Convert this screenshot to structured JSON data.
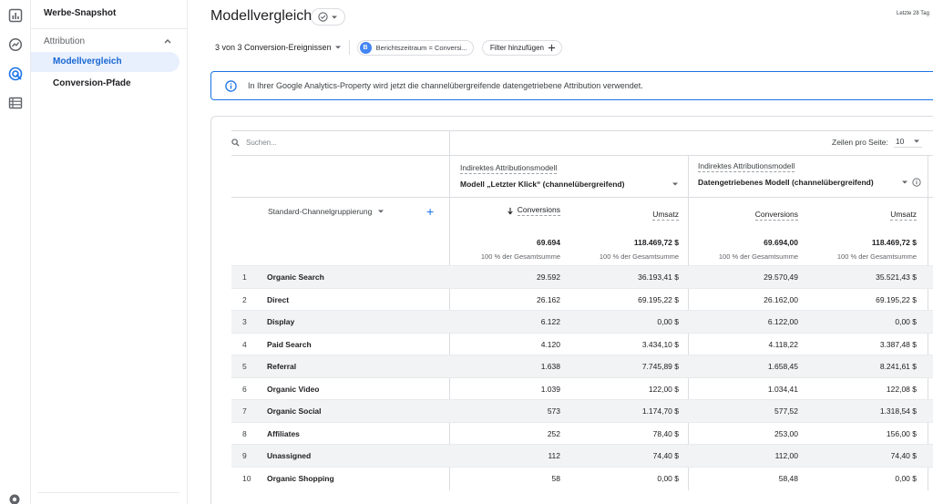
{
  "nav": {
    "top_item": "Werbe-Snapshot",
    "section": "Attribution",
    "items": [
      {
        "label": "Modellvergleich",
        "active": true
      },
      {
        "label": "Conversion-Pfade",
        "active": false
      }
    ]
  },
  "header": {
    "title": "Modellvergleich",
    "date_range": "Letzte 28 Tag"
  },
  "filters": {
    "conversions": "3 von 3 Conversion-Ereignissen",
    "chip_badge": "B",
    "chip_label": "Berichtszeitraum = Conversi...",
    "add_filter": "Filter hinzufügen"
  },
  "info": {
    "text": "In Ihrer Google Analytics-Property wird jetzt die channelübergreifende datengetriebene Attribution verwendet."
  },
  "table": {
    "search_placeholder": "Suchen...",
    "rows_per_page_label": "Zeilen pro Seite:",
    "rows_per_page_value": "10",
    "dimension": "Standard-Channelgruppierung",
    "models": [
      {
        "label": "Indirektes Attributionsmodell",
        "selected": "Modell „Letzter Klick“ (channelübergreifend)"
      },
      {
        "label": "Indirektes Attributionsmodell",
        "selected": "Datengetriebenes Modell (channelübergreifend)"
      }
    ],
    "metrics": [
      "Conversions",
      "Umsatz",
      "Conversions",
      "Umsatz"
    ],
    "totals": [
      "69.694",
      "118.469,72 $",
      "69.694,00",
      "118.469,72 $"
    ],
    "totals_pct": [
      "100 % der Gesamtsumme",
      "100 % der Gesamtsumme",
      "100 % der Gesamtsumme",
      "100 % der Gesamtsumme"
    ],
    "rows": [
      {
        "idx": "1",
        "name": "Organic Search",
        "v": [
          "29.592",
          "36.193,41 $",
          "29.570,49",
          "35.521,43 $"
        ]
      },
      {
        "idx": "2",
        "name": "Direct",
        "v": [
          "26.162",
          "69.195,22 $",
          "26.162,00",
          "69.195,22 $"
        ]
      },
      {
        "idx": "3",
        "name": "Display",
        "v": [
          "6.122",
          "0,00 $",
          "6.122,00",
          "0,00 $"
        ]
      },
      {
        "idx": "4",
        "name": "Paid Search",
        "v": [
          "4.120",
          "3.434,10 $",
          "4.118,22",
          "3.387,48 $"
        ]
      },
      {
        "idx": "5",
        "name": "Referral",
        "v": [
          "1.638",
          "7.745,89 $",
          "1.658,45",
          "8.241,61 $"
        ]
      },
      {
        "idx": "6",
        "name": "Organic Video",
        "v": [
          "1.039",
          "122,00 $",
          "1.034,41",
          "122,08 $"
        ]
      },
      {
        "idx": "7",
        "name": "Organic Social",
        "v": [
          "573",
          "1.174,70 $",
          "577,52",
          "1.318,54 $"
        ]
      },
      {
        "idx": "8",
        "name": "Affiliates",
        "v": [
          "252",
          "78,40 $",
          "253,00",
          "156,00 $"
        ]
      },
      {
        "idx": "9",
        "name": "Unassigned",
        "v": [
          "112",
          "74,40 $",
          "112,00",
          "74,40 $"
        ]
      },
      {
        "idx": "10",
        "name": "Organic Shopping",
        "v": [
          "58",
          "0,00 $",
          "58,48",
          "0,00 $"
        ]
      }
    ]
  },
  "icons": {
    "rail": [
      "bar-chart-icon",
      "explore-icon",
      "advertising-icon",
      "list-icon",
      "gear-icon"
    ]
  },
  "colors": {
    "accent": "#1a73e8",
    "active_bg": "#e8f0fe",
    "row_alt": "#f1f3f4"
  }
}
